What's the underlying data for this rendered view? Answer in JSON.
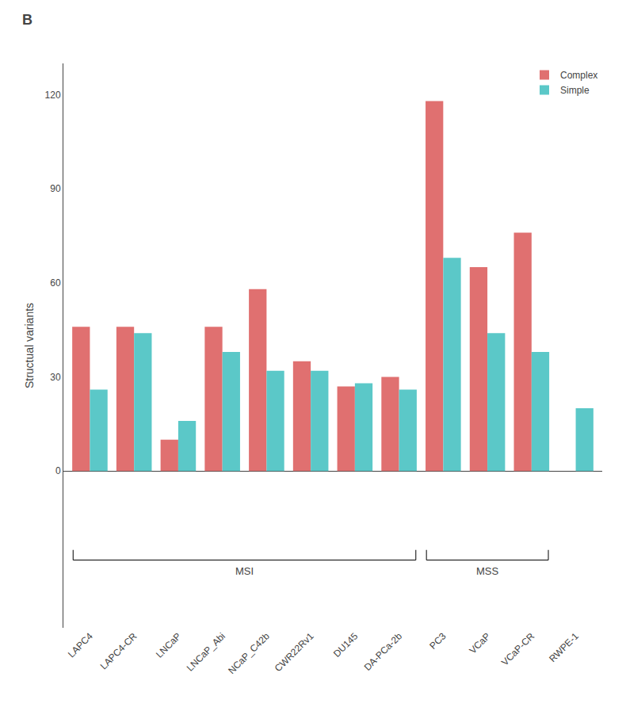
{
  "chart_data": {
    "type": "bar",
    "categories": [
      "LAPC4",
      "LAPC4-CR",
      "LNCaP",
      "LNCaP_Abi",
      "NCaP_C42b",
      "CWR22Rv1",
      "DU145",
      "DA-PCa-2b",
      "PC3",
      "VCaP",
      "VCaP-CR",
      "RWPE-1"
    ],
    "series": [
      {
        "name": "Complex",
        "color": "#E07070",
        "values": [
          46,
          46,
          10,
          46,
          58,
          35,
          27,
          30,
          118,
          65,
          76,
          0
        ]
      },
      {
        "name": "Simple",
        "color": "#5BC8C8",
        "values": [
          26,
          44,
          16,
          38,
          32,
          32,
          28,
          26,
          68,
          44,
          38,
          20
        ]
      }
    ],
    "ylabel": "Structual variants",
    "ylim": [
      -50,
      130
    ],
    "yticks": [
      0,
      30,
      60,
      90,
      120
    ],
    "grid": false,
    "legend": "upper right",
    "annotations": [
      {
        "text": "B"
      },
      {
        "text": "MSI",
        "from": "LAPC4",
        "to": "DA-PCa-2b"
      },
      {
        "text": "MSS",
        "from": "PC3",
        "to": "VCaP-CR"
      }
    ]
  }
}
